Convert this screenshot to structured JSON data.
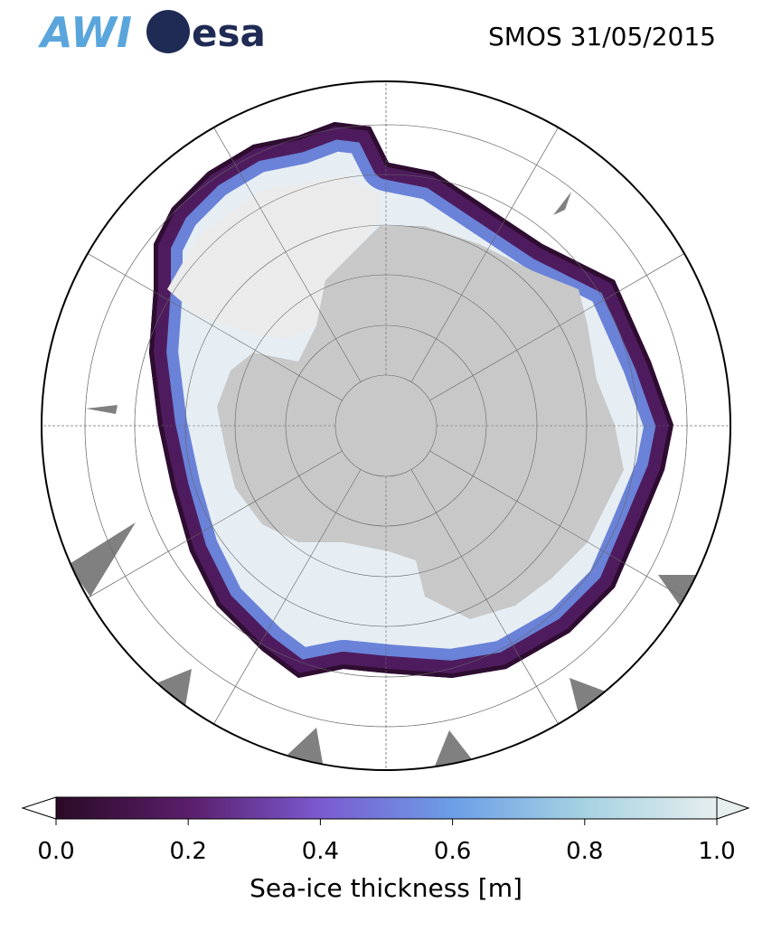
{
  "logos": [
    "AWI",
    "esa"
  ],
  "title": "SMOS 31/05/2015",
  "colorbar": {
    "label": "Sea-ice thickness [m]",
    "lim": [
      0,
      1
    ],
    "ticks": [
      {
        "value": 0,
        "label": "0.0"
      },
      {
        "value": 0.2,
        "label": "0.2"
      },
      {
        "value": 0.4,
        "label": "0.4"
      },
      {
        "value": 0.6,
        "label": "0.6"
      },
      {
        "value": 0.8,
        "label": "0.8"
      },
      {
        "value": 1,
        "label": "1.0"
      }
    ],
    "colors": [
      "#2a0a25",
      "#5a1e6a",
      "#7b5ad0",
      "#6c9ee6",
      "#a6d2e2",
      "#e6eeee"
    ]
  }
}
